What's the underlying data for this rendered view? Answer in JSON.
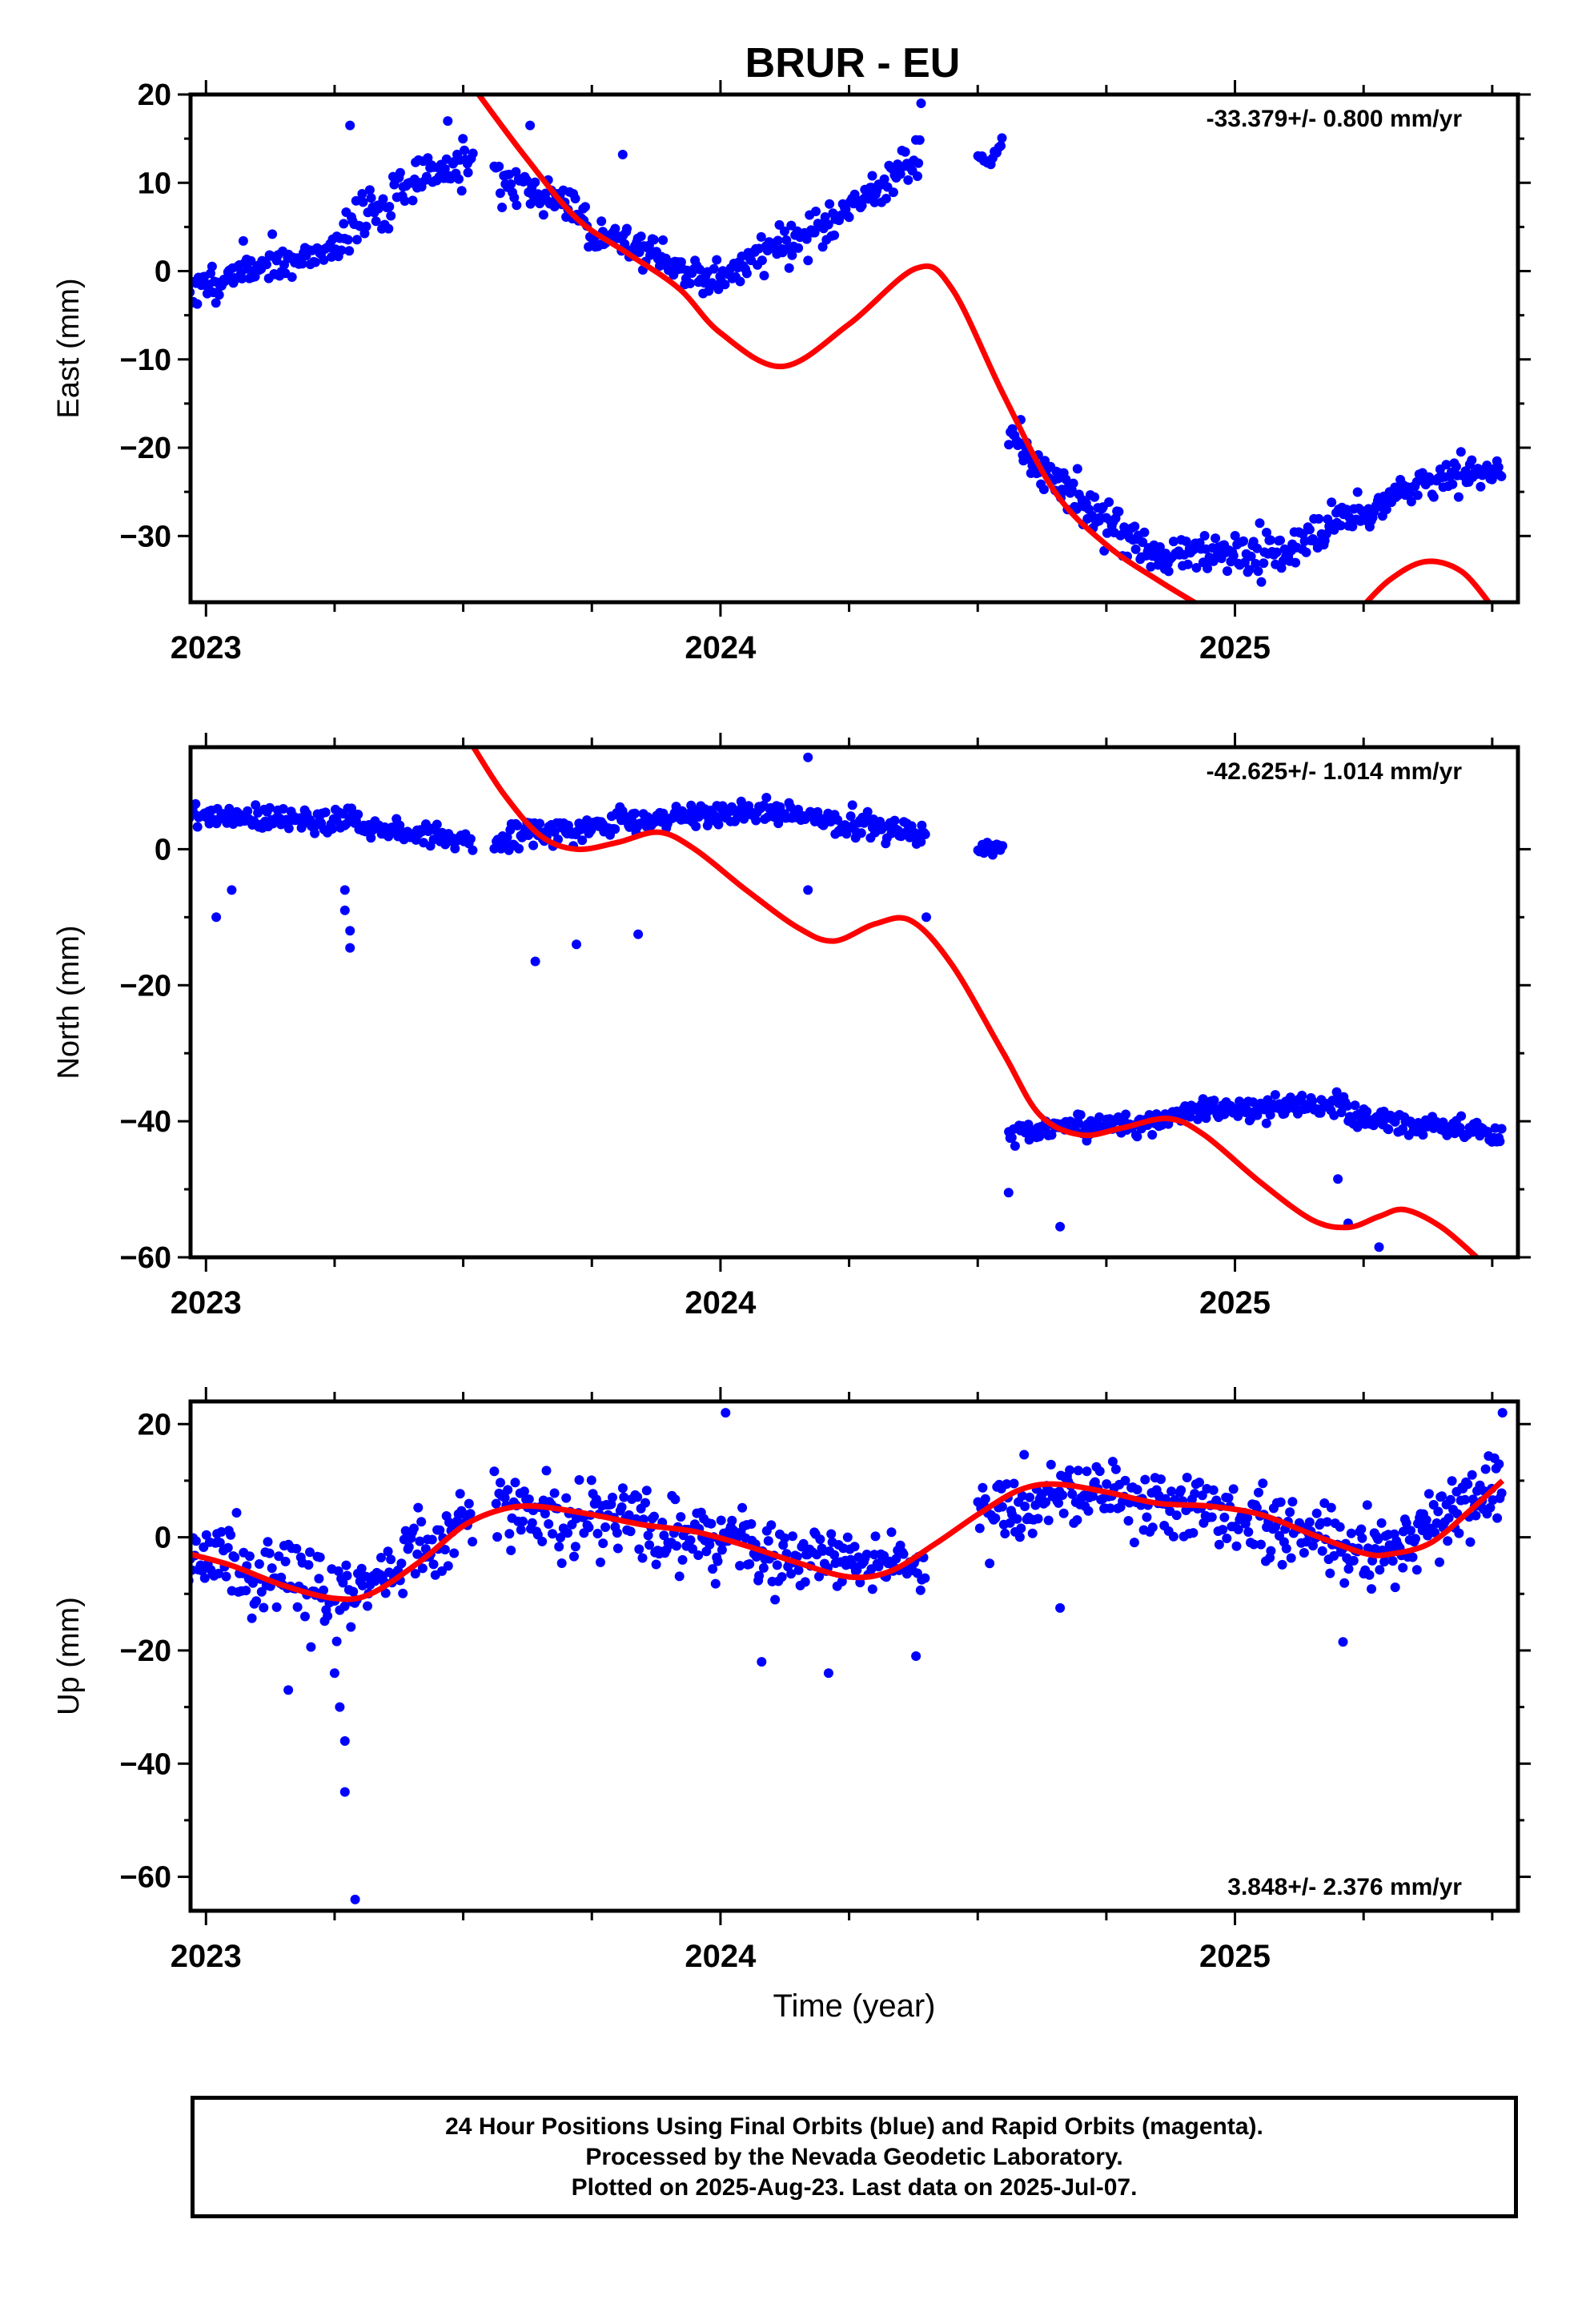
{
  "title": "BRUR - EU",
  "colors": {
    "points": "#0000ff",
    "model": "#ff0000",
    "frame": "#000000"
  },
  "chart_data": [
    {
      "type": "scatter",
      "name": "east",
      "ylabel": "East (mm)",
      "xlabel": "",
      "xlim": [
        2022.97,
        2025.55
      ],
      "ylim": [
        -37.5,
        20
      ],
      "yticks": [
        20,
        10,
        0,
        -10,
        -20,
        -30
      ],
      "xticks": [
        2023,
        2024,
        2025
      ],
      "rate_label": "-33.379+/- 0.800 mm/yr",
      "rate_position": "top-right",
      "segments": [
        {
          "x0": 2022.96,
          "x1": 2023.14,
          "y0": -2.5,
          "y1": 1.5,
          "noise": 1.6,
          "n": 64,
          "seed": 11
        },
        {
          "x0": 2023.14,
          "x1": 2023.26,
          "y0": 0.5,
          "y1": 3.0,
          "noise": 1.6,
          "n": 42,
          "seed": 12
        },
        {
          "x0": 2023.26,
          "x1": 2023.44,
          "y0": 4.0,
          "y1": 11.5,
          "noise": 2.2,
          "n": 60,
          "seed": 13
        },
        {
          "x0": 2023.44,
          "x1": 2023.52,
          "y0": 11.0,
          "y1": 12.5,
          "noise": 1.7,
          "n": 30,
          "seed": 14
        },
        {
          "x0": 2023.56,
          "x1": 2023.74,
          "y0": 11.0,
          "y1": 6.5,
          "noise": 1.8,
          "n": 62,
          "seed": 15
        },
        {
          "x0": 2023.74,
          "x1": 2023.98,
          "y0": 5.0,
          "y1": -1.0,
          "noise": 1.7,
          "n": 80,
          "seed": 16
        },
        {
          "x0": 2023.98,
          "x1": 2024.2,
          "y0": -1.0,
          "y1": 5.0,
          "noise": 1.8,
          "n": 72,
          "seed": 17
        },
        {
          "x0": 2024.2,
          "x1": 2024.39,
          "y0": 4.5,
          "y1": 13.5,
          "noise": 2.0,
          "n": 66,
          "seed": 18
        },
        {
          "x0": 2024.5,
          "x1": 2024.55,
          "y0": 12.0,
          "y1": 14.0,
          "noise": 1.0,
          "n": 14,
          "seed": 19
        },
        {
          "x0": 2024.56,
          "x1": 2024.6,
          "y0": -17.0,
          "y1": -21.0,
          "noise": 2.0,
          "n": 14,
          "seed": 20
        },
        {
          "x0": 2024.6,
          "x1": 2024.82,
          "y0": -22.0,
          "y1": -31.0,
          "noise": 2.0,
          "n": 80,
          "seed": 21
        },
        {
          "x0": 2024.82,
          "x1": 2025.12,
          "y0": -32.0,
          "y1": -32.0,
          "noise": 1.8,
          "n": 100,
          "seed": 22
        },
        {
          "x0": 2025.12,
          "x1": 2025.3,
          "y0": -30.0,
          "y1": -26.0,
          "noise": 1.7,
          "n": 60,
          "seed": 23
        },
        {
          "x0": 2025.3,
          "x1": 2025.52,
          "y0": -25.0,
          "y1": -22.5,
          "noise": 1.6,
          "n": 72,
          "seed": 24
        }
      ],
      "outliers": [
        [
          2023.28,
          16.5
        ],
        [
          2023.47,
          17.0
        ],
        [
          2023.63,
          16.5
        ],
        [
          2023.81,
          13.2
        ],
        [
          2024.39,
          19.0
        ]
      ],
      "model": [
        [
          2023.53,
          20
        ],
        [
          2023.62,
          13
        ],
        [
          2023.72,
          6
        ],
        [
          2023.82,
          2
        ],
        [
          2023.92,
          -2
        ],
        [
          2024.0,
          -7
        ],
        [
          2024.12,
          -10.8
        ],
        [
          2024.25,
          -6
        ],
        [
          2024.38,
          0.3
        ],
        [
          2024.45,
          -2
        ],
        [
          2024.55,
          -14
        ],
        [
          2024.65,
          -25
        ],
        [
          2024.75,
          -31
        ],
        [
          2024.85,
          -35
        ],
        [
          2024.95,
          -38.5
        ]
      ],
      "model2": [
        [
          2025.24,
          -38.5
        ],
        [
          2025.3,
          -35
        ],
        [
          2025.37,
          -32.9
        ],
        [
          2025.44,
          -34
        ],
        [
          2025.5,
          -38
        ]
      ]
    },
    {
      "type": "scatter",
      "name": "north",
      "ylabel": "North (mm)",
      "xlabel": "",
      "xlim": [
        2022.97,
        2025.55
      ],
      "ylim": [
        -60,
        15
      ],
      "yticks": [
        0,
        -20,
        -40,
        -60
      ],
      "xticks": [
        2023,
        2024,
        2025
      ],
      "rate_label": "-42.625+/- 1.014 mm/yr",
      "rate_position": "top-right",
      "segments": [
        {
          "x0": 2022.96,
          "x1": 2023.3,
          "y0": 5.0,
          "y1": 4.0,
          "noise": 1.5,
          "n": 110,
          "seed": 31
        },
        {
          "x0": 2023.3,
          "x1": 2023.52,
          "y0": 3.5,
          "y1": 1.0,
          "noise": 1.5,
          "n": 70,
          "seed": 32
        },
        {
          "x0": 2023.56,
          "x1": 2023.8,
          "y0": 1.5,
          "y1": 3.5,
          "noise": 1.7,
          "n": 80,
          "seed": 33
        },
        {
          "x0": 2023.8,
          "x1": 2024.12,
          "y0": 4.0,
          "y1": 6.0,
          "noise": 1.5,
          "n": 110,
          "seed": 34
        },
        {
          "x0": 2024.12,
          "x1": 2024.4,
          "y0": 5.0,
          "y1": 2.0,
          "noise": 1.8,
          "n": 95,
          "seed": 35
        },
        {
          "x0": 2024.5,
          "x1": 2024.55,
          "y0": 0.5,
          "y1": 0.0,
          "noise": 1.0,
          "n": 14,
          "seed": 36
        },
        {
          "x0": 2024.56,
          "x1": 2024.9,
          "y0": -42.0,
          "y1": -39.5,
          "noise": 1.4,
          "n": 120,
          "seed": 37
        },
        {
          "x0": 2024.9,
          "x1": 2025.22,
          "y0": -38.5,
          "y1": -37.5,
          "noise": 1.5,
          "n": 110,
          "seed": 38
        },
        {
          "x0": 2025.22,
          "x1": 2025.52,
          "y0": -39.5,
          "y1": -42.0,
          "noise": 1.2,
          "n": 100,
          "seed": 39
        }
      ],
      "outliers": [
        [
          2023.02,
          -10
        ],
        [
          2023.05,
          -6
        ],
        [
          2023.27,
          -6
        ],
        [
          2023.27,
          -9
        ],
        [
          2023.28,
          -12
        ],
        [
          2023.28,
          -14.5
        ],
        [
          2023.64,
          -16.5
        ],
        [
          2023.72,
          -14
        ],
        [
          2023.84,
          -12.5
        ],
        [
          2024.17,
          13.5
        ],
        [
          2024.17,
          -6
        ],
        [
          2024.4,
          -10
        ],
        [
          2024.56,
          -50.5
        ],
        [
          2024.66,
          -55.5
        ],
        [
          2025.2,
          -48.5
        ],
        [
          2025.22,
          -55
        ],
        [
          2025.28,
          -58.5
        ]
      ],
      "model": [
        [
          2023.52,
          15
        ],
        [
          2023.58,
          8
        ],
        [
          2023.65,
          2
        ],
        [
          2023.72,
          0
        ],
        [
          2023.8,
          1
        ],
        [
          2023.88,
          2.5
        ],
        [
          2023.95,
          0
        ],
        [
          2024.05,
          -6
        ],
        [
          2024.15,
          -11.5
        ],
        [
          2024.22,
          -13.5
        ],
        [
          2024.3,
          -11
        ],
        [
          2024.37,
          -10.5
        ],
        [
          2024.45,
          -17
        ],
        [
          2024.55,
          -30
        ],
        [
          2024.62,
          -39
        ],
        [
          2024.7,
          -42
        ],
        [
          2024.78,
          -41
        ],
        [
          2024.87,
          -39.6
        ],
        [
          2024.94,
          -42
        ],
        [
          2025.05,
          -49
        ],
        [
          2025.15,
          -54.5
        ],
        [
          2025.22,
          -55.6
        ],
        [
          2025.28,
          -54
        ],
        [
          2025.33,
          -53
        ],
        [
          2025.4,
          -55.5
        ],
        [
          2025.47,
          -60
        ]
      ]
    },
    {
      "type": "scatter",
      "name": "up",
      "ylabel": "Up (mm)",
      "xlabel": "Time (year)",
      "xlim": [
        2022.97,
        2025.55
      ],
      "ylim": [
        -66,
        24
      ],
      "yticks": [
        20,
        0,
        -20,
        -40,
        -60
      ],
      "xticks": [
        2023,
        2024,
        2025
      ],
      "rate_label": "3.848+/- 2.376 mm/yr",
      "rate_position": "bottom-right",
      "segments": [
        {
          "x0": 2022.96,
          "x1": 2023.25,
          "y0": -3.0,
          "y1": -10.0,
          "noise": 5.5,
          "n": 100,
          "seed": 51
        },
        {
          "x0": 2023.25,
          "x1": 2023.52,
          "y0": -11.0,
          "y1": 2.5,
          "noise": 5.0,
          "n": 90,
          "seed": 52
        },
        {
          "x0": 2023.56,
          "x1": 2023.85,
          "y0": 6.0,
          "y1": 2.0,
          "noise": 5.5,
          "n": 100,
          "seed": 53
        },
        {
          "x0": 2023.85,
          "x1": 2024.1,
          "y0": 1.5,
          "y1": -2.0,
          "noise": 5.5,
          "n": 90,
          "seed": 54
        },
        {
          "x0": 2024.1,
          "x1": 2024.4,
          "y0": -3.0,
          "y1": -5.0,
          "noise": 5.0,
          "n": 100,
          "seed": 55
        },
        {
          "x0": 2024.5,
          "x1": 2024.75,
          "y0": 4.0,
          "y1": 9.0,
          "noise": 5.0,
          "n": 90,
          "seed": 56
        },
        {
          "x0": 2024.75,
          "x1": 2025.05,
          "y0": 7.0,
          "y1": 4.0,
          "noise": 5.5,
          "n": 100,
          "seed": 57
        },
        {
          "x0": 2025.05,
          "x1": 2025.3,
          "y0": 2.0,
          "y1": -3.0,
          "noise": 5.0,
          "n": 90,
          "seed": 58
        },
        {
          "x0": 2025.3,
          "x1": 2025.52,
          "y0": -2.0,
          "y1": 10.0,
          "noise": 5.0,
          "n": 80,
          "seed": 59
        }
      ],
      "outliers": [
        [
          2023.16,
          -27
        ],
        [
          2023.25,
          -24
        ],
        [
          2023.26,
          -30
        ],
        [
          2023.27,
          -36
        ],
        [
          2023.27,
          -45
        ],
        [
          2023.29,
          -64
        ],
        [
          2024.01,
          22
        ],
        [
          2024.08,
          -22
        ],
        [
          2024.21,
          -24
        ],
        [
          2024.38,
          -21
        ],
        [
          2024.66,
          -12.5
        ],
        [
          2025.21,
          -18.5
        ],
        [
          2025.52,
          22
        ]
      ],
      "model": [
        [
          2022.97,
          -3
        ],
        [
          2023.05,
          -5
        ],
        [
          2023.15,
          -8.5
        ],
        [
          2023.25,
          -10.8
        ],
        [
          2023.32,
          -10
        ],
        [
          2023.42,
          -4
        ],
        [
          2023.5,
          2
        ],
        [
          2023.57,
          4.8
        ],
        [
          2023.64,
          5.5
        ],
        [
          2023.75,
          4
        ],
        [
          2023.85,
          2.2
        ],
        [
          2023.95,
          1
        ],
        [
          2024.05,
          -1.5
        ],
        [
          2024.15,
          -4.5
        ],
        [
          2024.25,
          -7
        ],
        [
          2024.33,
          -6
        ],
        [
          2024.42,
          -1
        ],
        [
          2024.5,
          4
        ],
        [
          2024.58,
          8.3
        ],
        [
          2024.65,
          9.4
        ],
        [
          2024.75,
          8
        ],
        [
          2024.85,
          6
        ],
        [
          2024.95,
          5.5
        ],
        [
          2025.05,
          4
        ],
        [
          2025.15,
          0.5
        ],
        [
          2025.25,
          -2.8
        ],
        [
          2025.3,
          -3
        ],
        [
          2025.38,
          -1
        ],
        [
          2025.46,
          5
        ],
        [
          2025.52,
          10
        ]
      ]
    }
  ],
  "footer": {
    "line1": "24 Hour Positions Using Final Orbits (blue) and Rapid Orbits (magenta).",
    "line2": "Processed by the Nevada Geodetic Laboratory.",
    "line3": "Plotted on 2025-Aug-23. Last data on 2025-Jul-07."
  }
}
